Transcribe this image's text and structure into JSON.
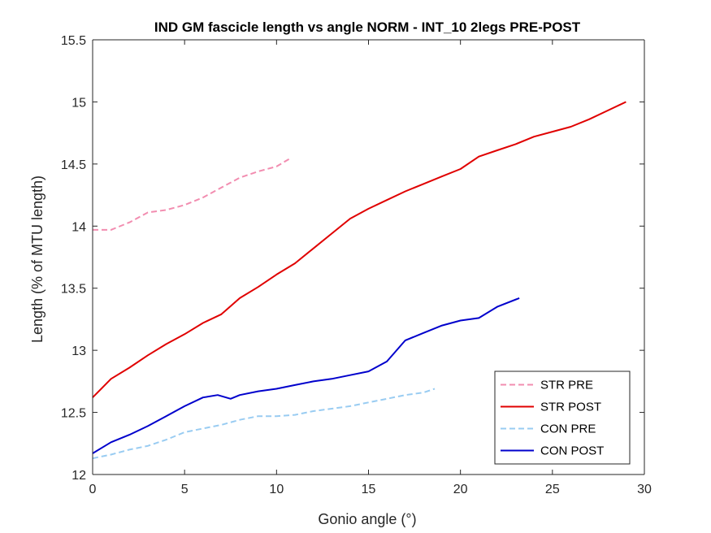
{
  "chart_data": {
    "type": "line",
    "title": "IND GM fascicle length vs angle NORM - INT_10 2legs PRE-POST",
    "xlabel": "Gonio angle (°)",
    "ylabel": "Length (% of MTU length)",
    "xlim": [
      0,
      30
    ],
    "ylim": [
      12,
      15.5
    ],
    "xticks": [
      0,
      5,
      10,
      15,
      20,
      25,
      30
    ],
    "xtick_labels": [
      "0",
      "5",
      "10",
      "15",
      "20",
      "25",
      "30"
    ],
    "yticks": [
      12,
      12.5,
      13,
      13.5,
      14,
      14.5,
      15,
      15.5
    ],
    "ytick_labels": [
      "12",
      "12.5",
      "13",
      "13.5",
      "14",
      "14.5",
      "15",
      "15.5"
    ],
    "grid": false,
    "legend_position": "bottom-right",
    "series": [
      {
        "name": "STR PRE",
        "color": "#f28db0",
        "dash": "dashed",
        "x": [
          0,
          1,
          2,
          3,
          4,
          5,
          6,
          7,
          8,
          9,
          10,
          10.8
        ],
        "y": [
          13.97,
          13.97,
          14.03,
          14.11,
          14.13,
          14.17,
          14.23,
          14.31,
          14.39,
          14.44,
          14.48,
          14.55
        ]
      },
      {
        "name": "STR POST",
        "color": "#e00000",
        "dash": "solid",
        "x": [
          0,
          1,
          2,
          3,
          4,
          5,
          6,
          7,
          8,
          9,
          10,
          11,
          12,
          13,
          14,
          15,
          16,
          17,
          18,
          19,
          20,
          21,
          22,
          23,
          24,
          25,
          26,
          27,
          28,
          29
        ],
        "y": [
          12.62,
          12.77,
          12.86,
          12.96,
          13.05,
          13.13,
          13.22,
          13.29,
          13.42,
          13.51,
          13.61,
          13.7,
          13.82,
          13.94,
          14.06,
          14.14,
          14.21,
          14.28,
          14.34,
          14.4,
          14.46,
          14.56,
          14.61,
          14.66,
          14.72,
          14.76,
          14.8,
          14.86,
          14.93,
          15.0
        ]
      },
      {
        "name": "CON PRE",
        "color": "#99ccf2",
        "dash": "dashed",
        "x": [
          0,
          1,
          2,
          3,
          4,
          5,
          6,
          7,
          8,
          9,
          10,
          11,
          12,
          13,
          14,
          15,
          16,
          17,
          18,
          18.6
        ],
        "y": [
          12.13,
          12.16,
          12.2,
          12.23,
          12.28,
          12.34,
          12.37,
          12.4,
          12.44,
          12.47,
          12.47,
          12.48,
          12.51,
          12.53,
          12.55,
          12.58,
          12.61,
          12.64,
          12.66,
          12.69
        ]
      },
      {
        "name": "CON POST",
        "color": "#0000cc",
        "dash": "solid",
        "x": [
          0,
          1,
          2,
          3,
          4,
          5,
          6,
          6.8,
          7.5,
          8,
          9,
          10,
          11,
          12,
          13,
          14,
          15,
          16,
          17,
          18,
          19,
          20,
          21,
          22,
          23.2
        ],
        "y": [
          12.17,
          12.26,
          12.32,
          12.39,
          12.47,
          12.55,
          12.62,
          12.64,
          12.61,
          12.64,
          12.67,
          12.69,
          12.72,
          12.75,
          12.77,
          12.8,
          12.83,
          12.91,
          13.08,
          13.14,
          13.2,
          13.24,
          13.26,
          13.35,
          13.42
        ]
      }
    ]
  }
}
